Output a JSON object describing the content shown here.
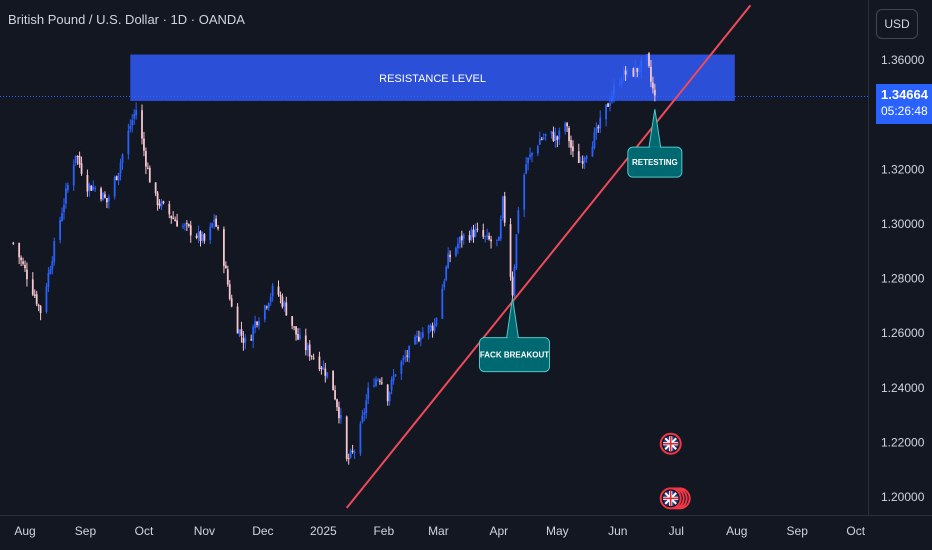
{
  "header": {
    "title": "British Pound / U.S. Dollar · 1D · OANDA",
    "currency": "USD"
  },
  "price_badge": {
    "price": "1.34664",
    "countdown": "05:26:48"
  },
  "colors": {
    "background": "#131722",
    "bull_candle": "#2962ff",
    "bear_candle": "#f7c6cf",
    "trendline": "#ef4a5a",
    "resistance_zone": "#2b4fd6",
    "callout": "#006870",
    "price_line": "#2962ff"
  },
  "chart_data": {
    "type": "candlestick",
    "title": "British Pound / U.S. Dollar · 1D · OANDA",
    "ylim": [
      1.19,
      1.375
    ],
    "y_ticks": [
      "1.36000",
      "1.34000",
      "1.32000",
      "1.30000",
      "1.28000",
      "1.26000",
      "1.24000",
      "1.22000",
      "1.20000"
    ],
    "x_ticks": [
      "Aug",
      "Sep",
      "Oct",
      "Nov",
      "Dec",
      "2025",
      "Feb",
      "Mar",
      "Apr",
      "May",
      "Jun",
      "Jul",
      "Aug",
      "Sep",
      "Oct"
    ],
    "price_path": [
      [
        "2024-07-26",
        1.293
      ],
      [
        "2024-08-01",
        1.283
      ],
      [
        "2024-08-06",
        1.274
      ],
      [
        "2024-08-09",
        1.268
      ],
      [
        "2024-08-14",
        1.285
      ],
      [
        "2024-08-20",
        1.305
      ],
      [
        "2024-08-27",
        1.326
      ],
      [
        "2024-09-02",
        1.314
      ],
      [
        "2024-09-07",
        1.313
      ],
      [
        "2024-09-12",
        1.308
      ],
      [
        "2024-09-18",
        1.32
      ],
      [
        "2024-09-24",
        1.336
      ],
      [
        "2024-09-27",
        1.342
      ],
      [
        "2024-10-02",
        1.323
      ],
      [
        "2024-10-06",
        1.31
      ],
      [
        "2024-10-12",
        1.305
      ],
      [
        "2024-10-19",
        1.3
      ],
      [
        "2024-10-26",
        1.297
      ],
      [
        "2024-11-02",
        1.293
      ],
      [
        "2024-11-06",
        1.302
      ],
      [
        "2024-11-10",
        1.291
      ],
      [
        "2024-11-16",
        1.265
      ],
      [
        "2024-11-23",
        1.255
      ],
      [
        "2024-11-27",
        1.264
      ],
      [
        "2024-12-02",
        1.27
      ],
      [
        "2024-12-07",
        1.277
      ],
      [
        "2024-12-12",
        1.27
      ],
      [
        "2024-12-19",
        1.258
      ],
      [
        "2024-12-25",
        1.253
      ],
      [
        "2024-12-30",
        1.249
      ],
      [
        "2025-01-05",
        1.243
      ],
      [
        "2025-01-10",
        1.228
      ],
      [
        "2025-01-13",
        1.213
      ],
      [
        "2025-01-18",
        1.218
      ],
      [
        "2025-01-25",
        1.242
      ],
      [
        "2025-01-30",
        1.244
      ],
      [
        "2025-02-03",
        1.237
      ],
      [
        "2025-02-07",
        1.246
      ],
      [
        "2025-02-13",
        1.252
      ],
      [
        "2025-02-20",
        1.26
      ],
      [
        "2025-02-27",
        1.263
      ],
      [
        "2025-03-06",
        1.287
      ],
      [
        "2025-03-13",
        1.295
      ],
      [
        "2025-03-20",
        1.297
      ],
      [
        "2025-03-26",
        1.294
      ],
      [
        "2025-04-01",
        1.293
      ],
      [
        "2025-04-03",
        1.308
      ],
      [
        "2025-04-08",
        1.275
      ],
      [
        "2025-04-11",
        1.306
      ],
      [
        "2025-04-15",
        1.322
      ],
      [
        "2025-04-22",
        1.331
      ],
      [
        "2025-04-27",
        1.333
      ],
      [
        "2025-05-01",
        1.331
      ],
      [
        "2025-05-05",
        1.337
      ],
      [
        "2025-05-09",
        1.325
      ],
      [
        "2025-05-13",
        1.323
      ],
      [
        "2025-05-17",
        1.328
      ],
      [
        "2025-05-21",
        1.333
      ],
      [
        "2025-05-27",
        1.344
      ],
      [
        "2025-05-31",
        1.351
      ],
      [
        "2025-06-04",
        1.355
      ],
      [
        "2025-06-08",
        1.355
      ],
      [
        "2025-06-12",
        1.357
      ],
      [
        "2025-06-16",
        1.36
      ],
      [
        "2025-06-18",
        1.352
      ],
      [
        "2025-06-20",
        1.346
      ]
    ],
    "annotations": {
      "resistance": {
        "label": "RESISTANCE LEVEL",
        "low": 1.345,
        "high": 1.362,
        "from": "2024-09-24",
        "to": "2025-07-31"
      },
      "trendline": {
        "from": [
          "2025-01-13",
          1.196
        ],
        "to": [
          "2025-08-08",
          1.38
        ]
      },
      "callouts": [
        {
          "label": "FACK BREAKOUT",
          "date": "2025-04-08",
          "price": 1.273
        },
        {
          "label": "RETESTING",
          "date": "2025-06-20",
          "price": 1.342
        }
      ],
      "current_price": 1.34664,
      "event_markers": [
        {
          "icon": "uk-flag-icon",
          "date": "2025-06-23",
          "price": 1.2195
        },
        {
          "icon": "uk-flag-icon",
          "date": "2025-06-23",
          "price": 1.1995,
          "stacked": true
        }
      ]
    }
  }
}
